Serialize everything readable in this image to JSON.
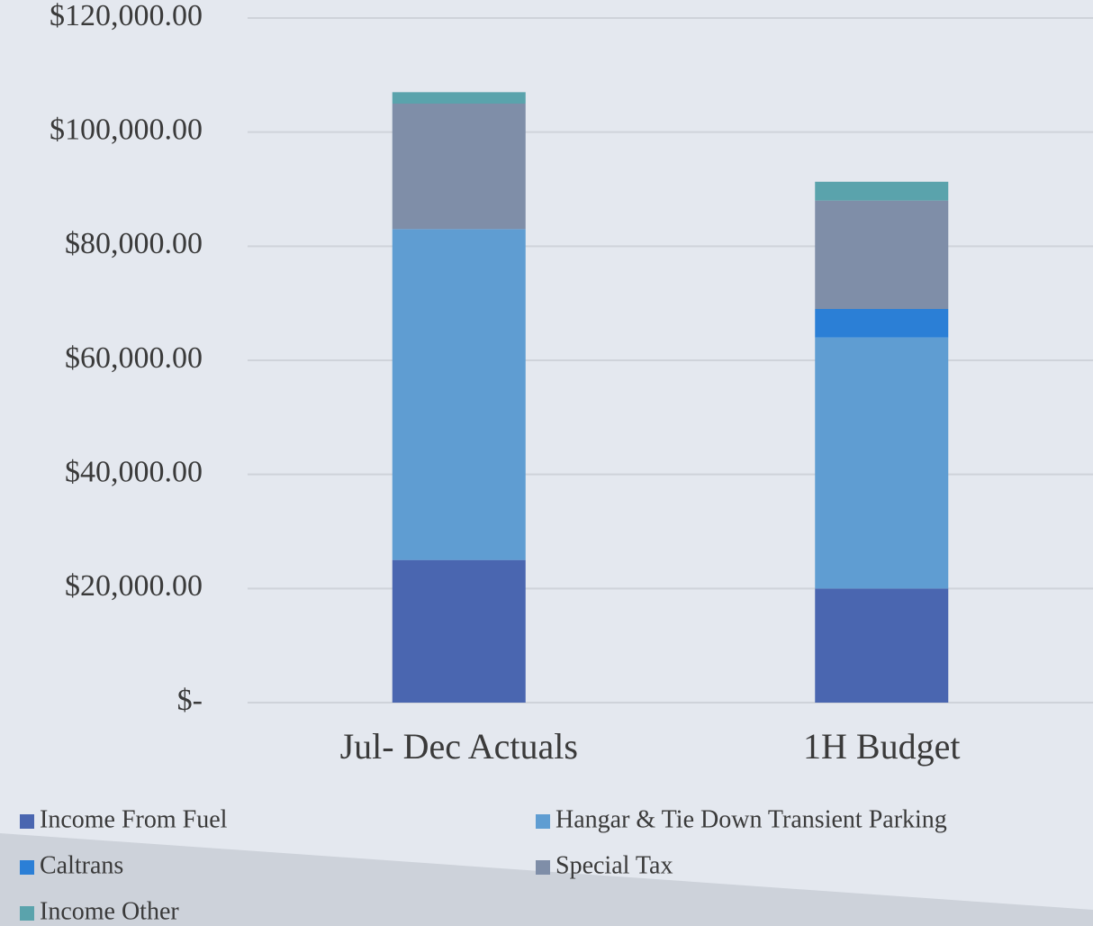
{
  "chart_data": {
    "type": "stacked_bar",
    "categories": [
      "Jul- Dec Actuals",
      "1H Budget"
    ],
    "series": [
      {
        "name": "Income From Fuel",
        "color": "#4a66b0",
        "values": [
          25000,
          20000
        ]
      },
      {
        "name": "Hangar & Tie Down Transient Parking",
        "color": "#5f9dd2",
        "values": [
          58000,
          44000
        ]
      },
      {
        "name": "Caltrans",
        "color": "#2b7fd6",
        "values": [
          0,
          5000
        ]
      },
      {
        "name": "Special Tax",
        "color": "#7f8ea8",
        "values": [
          22000,
          19000
        ]
      },
      {
        "name": "Income Other",
        "color": "#5aa3ac",
        "values": [
          2000,
          3300
        ]
      }
    ],
    "ylim": [
      0,
      120000
    ],
    "yticks": [
      {
        "value": 0,
        "label": "$-"
      },
      {
        "value": 20000,
        "label": "$20,000.00"
      },
      {
        "value": 40000,
        "label": "$40,000.00"
      },
      {
        "value": 60000,
        "label": "$60,000.00"
      },
      {
        "value": 80000,
        "label": "$80,000.00"
      },
      {
        "value": 100000,
        "label": "$100,000.00"
      },
      {
        "value": 120000,
        "label": "$120,000.00"
      }
    ],
    "grid": true
  }
}
